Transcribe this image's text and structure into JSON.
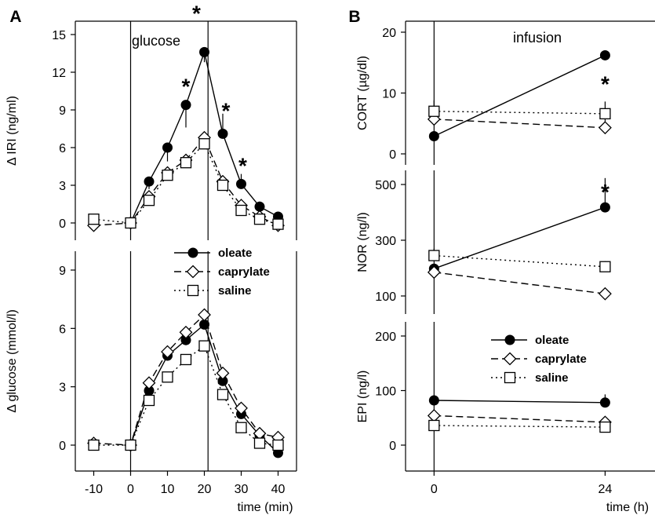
{
  "chart_data": [
    {
      "panel": "A",
      "type": "line",
      "subplot": "top",
      "ylabel": "Δ IRI (ng/ml)",
      "ylim": [
        0,
        15
      ],
      "yticks": [
        "0",
        "3",
        "6",
        "9",
        "12",
        "15"
      ],
      "annotation": "glucose",
      "x": [
        -10,
        0,
        5,
        10,
        15,
        20,
        25,
        30,
        35,
        40
      ],
      "series": [
        {
          "name": "oleate",
          "marker": "filled-circle",
          "line": "solid",
          "values": [
            null,
            0,
            3.3,
            6.0,
            9.4,
            13.6,
            7.1,
            3.1,
            1.3,
            0.5
          ],
          "errors": [
            null,
            0,
            0.6,
            1.1,
            1.8,
            0.8,
            1.6,
            0.8,
            0.4,
            0.3
          ]
        },
        {
          "name": "caprylate",
          "marker": "open-diamond",
          "line": "dashed",
          "values": [
            -0.2,
            0,
            2.1,
            4.0,
            5.0,
            6.8,
            3.3,
            1.4,
            0.5,
            -0.2
          ],
          "errors": [
            null,
            null,
            null,
            null,
            null,
            null,
            null,
            null,
            null,
            null
          ]
        },
        {
          "name": "saline",
          "marker": "open-square",
          "line": "dotted",
          "values": [
            0.3,
            0,
            1.8,
            3.8,
            4.8,
            6.3,
            3.0,
            1.0,
            0.3,
            -0.1
          ],
          "errors": [
            null,
            null,
            null,
            null,
            null,
            null,
            null,
            null,
            null,
            null
          ]
        }
      ],
      "significance": [
        {
          "x": 15,
          "label": "*"
        },
        {
          "x": 20,
          "label": "*"
        },
        {
          "x": 25,
          "label": "*"
        },
        {
          "x": 30,
          "label": "*"
        }
      ],
      "legend": [
        "oleate",
        "caprylate",
        "saline"
      ]
    },
    {
      "panel": "A",
      "type": "line",
      "subplot": "bottom",
      "ylabel": "Δ glucose (mmol/l)",
      "xlabel": "time (min)",
      "ylim": [
        0,
        9
      ],
      "yticks": [
        "0",
        "3",
        "6",
        "9"
      ],
      "xticks": [
        "-10",
        "0",
        "10",
        "20",
        "30",
        "40"
      ],
      "x": [
        -10,
        0,
        5,
        10,
        15,
        20,
        25,
        30,
        35,
        40
      ],
      "series": [
        {
          "name": "oleate",
          "marker": "filled-circle",
          "line": "solid",
          "values": [
            null,
            0,
            2.8,
            4.6,
            5.4,
            6.2,
            3.3,
            1.6,
            0.5,
            -0.4
          ]
        },
        {
          "name": "caprylate",
          "marker": "open-diamond",
          "line": "dashed",
          "values": [
            0.1,
            0,
            3.2,
            4.8,
            5.8,
            6.7,
            3.7,
            1.9,
            0.6,
            0.4
          ]
        },
        {
          "name": "saline",
          "marker": "open-square",
          "line": "dotted",
          "values": [
            0.0,
            0,
            2.3,
            3.5,
            4.4,
            5.1,
            2.6,
            0.9,
            0.1,
            0.0
          ]
        }
      ]
    },
    {
      "panel": "B",
      "type": "line",
      "subplot": "top",
      "ylabel": "CORT (µg/dl)",
      "ylim": [
        0,
        20
      ],
      "yticks": [
        "0",
        "10",
        "20"
      ],
      "annotation": "infusion",
      "x": [
        0,
        24
      ],
      "series": [
        {
          "name": "oleate",
          "marker": "filled-circle",
          "line": "solid",
          "values": [
            2.9,
            16.2
          ],
          "errors": [
            null,
            null
          ]
        },
        {
          "name": "caprylate",
          "marker": "open-diamond",
          "line": "dashed",
          "values": [
            5.7,
            4.3
          ],
          "errors": [
            1.5,
            1.6
          ]
        },
        {
          "name": "saline",
          "marker": "open-square",
          "line": "dotted",
          "values": [
            7.0,
            6.6
          ],
          "errors": [
            1.8,
            2.0
          ]
        }
      ],
      "significance": [
        {
          "x": 24,
          "label": "*"
        }
      ]
    },
    {
      "panel": "B",
      "type": "line",
      "subplot": "middle",
      "ylabel": "NOR (ng/l)",
      "ylim": [
        50,
        550
      ],
      "yticks": [
        "100",
        "300",
        "500"
      ],
      "x": [
        0,
        24
      ],
      "series": [
        {
          "name": "oleate",
          "marker": "filled-circle",
          "line": "solid",
          "values": [
            198,
            418
          ],
          "errors": [
            null,
            105
          ]
        },
        {
          "name": "caprylate",
          "marker": "open-diamond",
          "line": "dashed",
          "values": [
            185,
            108
          ],
          "errors": [
            null,
            null
          ]
        },
        {
          "name": "saline",
          "marker": "open-square",
          "line": "dotted",
          "values": [
            245,
            205
          ],
          "errors": [
            25,
            20
          ]
        }
      ],
      "significance": [
        {
          "x": 24,
          "label": "*"
        }
      ]
    },
    {
      "panel": "B",
      "type": "line",
      "subplot": "bottom",
      "ylabel": "EPI (ng/l)",
      "xlabel": "time (h)",
      "ylim": [
        -10,
        210
      ],
      "yticks": [
        "0",
        "100",
        "200"
      ],
      "xticks": [
        "0",
        "24"
      ],
      "x": [
        0,
        24
      ],
      "series": [
        {
          "name": "oleate",
          "marker": "filled-circle",
          "line": "solid",
          "values": [
            82,
            78
          ],
          "errors": [
            null,
            15
          ]
        },
        {
          "name": "caprylate",
          "marker": "open-diamond",
          "line": "dashed",
          "values": [
            54,
            42
          ],
          "errors": [
            null,
            null
          ]
        },
        {
          "name": "saline",
          "marker": "open-square",
          "line": "dotted",
          "values": [
            36,
            33
          ],
          "errors": [
            null,
            null
          ]
        }
      ],
      "legend": [
        "oleate",
        "caprylate",
        "saline"
      ]
    }
  ]
}
